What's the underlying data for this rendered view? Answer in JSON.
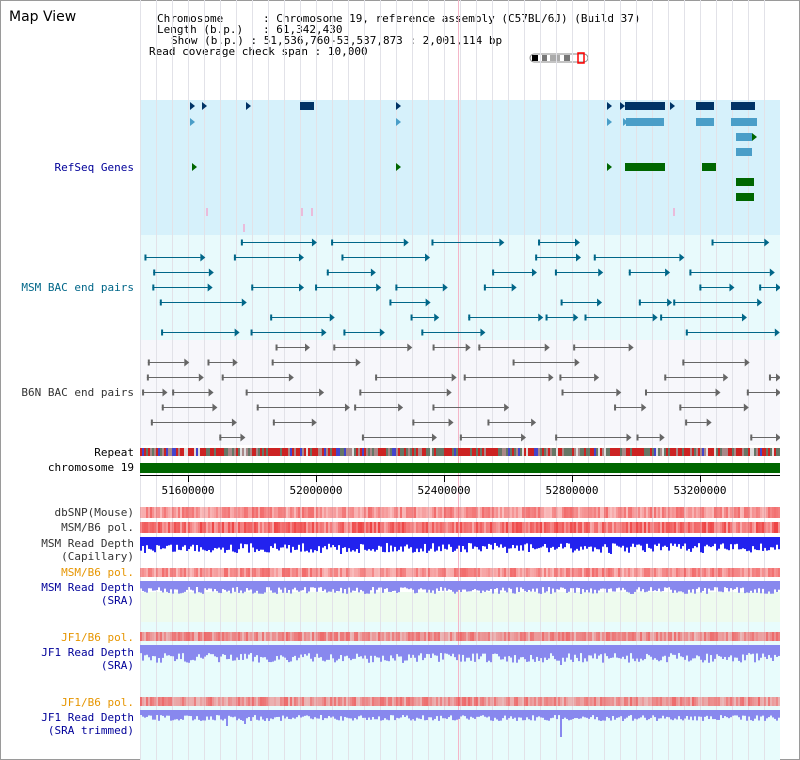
{
  "title": "Map View",
  "info": {
    "chromosome_label": "Chromosome",
    "chromosome_value": "Chromosome 19, reference assembly (C57BL/6J) (Build 37)",
    "length_label": "Length (b.p.)",
    "length_value": "61,342,430",
    "show_label": "Show (b.p.)",
    "show_value": "51,536,760-53,537,873 : 2,001,114 bp",
    "coverage_label": "Read coverage check span",
    "coverage_value": "10,000"
  },
  "tracks": {
    "refseq": "RefSeq Genes",
    "msm_bac": "MSM BAC end pairs",
    "b6n_bac": "B6N BAC end pairs",
    "repeat": "Repeat",
    "chromosome": "chromosome 19",
    "dbsnp": "dbSNP(Mouse)",
    "msm_b6_pol_1": "MSM/B6 pol.",
    "msm_read_depth_cap_1": "MSM Read Depth",
    "msm_read_depth_cap_2": "(Capillary)",
    "msm_b6_pol_2": "MSM/B6 pol.",
    "msm_read_depth_sra_1": "MSM Read Depth",
    "msm_read_depth_sra_2": "(SRA)",
    "jf1_b6_pol_1": "JF1/B6 pol.",
    "jf1_read_depth_sra_1": "JF1 Read Depth",
    "jf1_read_depth_sra_2": "(SRA)",
    "jf1_b6_pol_2": "JF1/B6 pol.",
    "jf1_read_depth_trim_1": "JF1 Read Depth",
    "jf1_read_depth_trim_2": "(SRA trimmed)"
  },
  "axis": {
    "ticks": [
      "51600000",
      "52000000",
      "52400000",
      "52800000",
      "53200000"
    ]
  },
  "colors": {
    "refseq_bg": "#d6f1fb",
    "msm_bg": "#e8fafc",
    "b6n_bg": "#f7f7fb",
    "chromosome": "#006600",
    "dark_gene": "#003366",
    "mid_gene": "#4a9ec8",
    "green_gene": "#006600",
    "msm_bac": "#006688",
    "b6n_bac": "#666666",
    "read_depth_cap": "#2222ee",
    "read_depth_sra": "#8888ee",
    "pol": "#ee4444"
  }
}
